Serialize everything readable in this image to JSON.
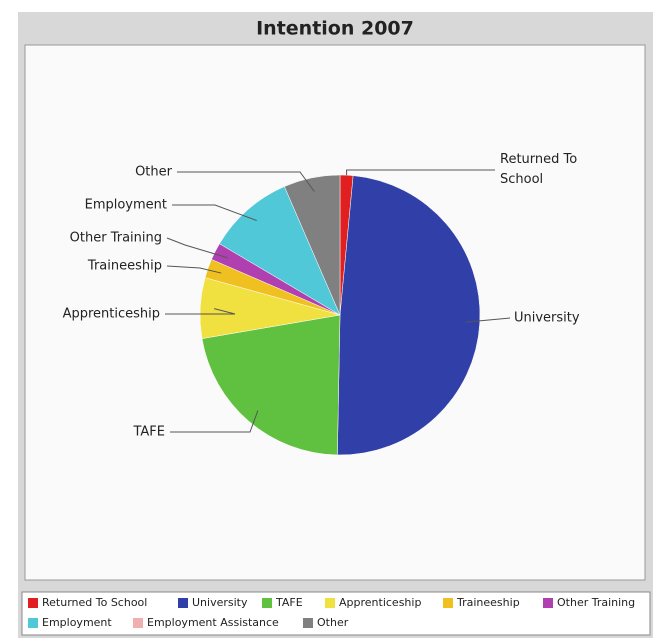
{
  "chart_data": {
    "type": "pie",
    "title": "Intention 2007",
    "categories": [
      "Returned To School",
      "University",
      "TAFE",
      "Apprenticeship",
      "Traineeship",
      "Other Training",
      "Employment",
      "Employment Assistance",
      "Other"
    ],
    "values": [
      1.5,
      48.8,
      22,
      7,
      2.2,
      2,
      10,
      0,
      6.5
    ],
    "colors": [
      "#e02020",
      "#3040a8",
      "#60c040",
      "#f0e040",
      "#f0c020",
      "#b040b0",
      "#50c8d8",
      "#f0b0b0",
      "#808080"
    ],
    "legend": "bottom"
  }
}
